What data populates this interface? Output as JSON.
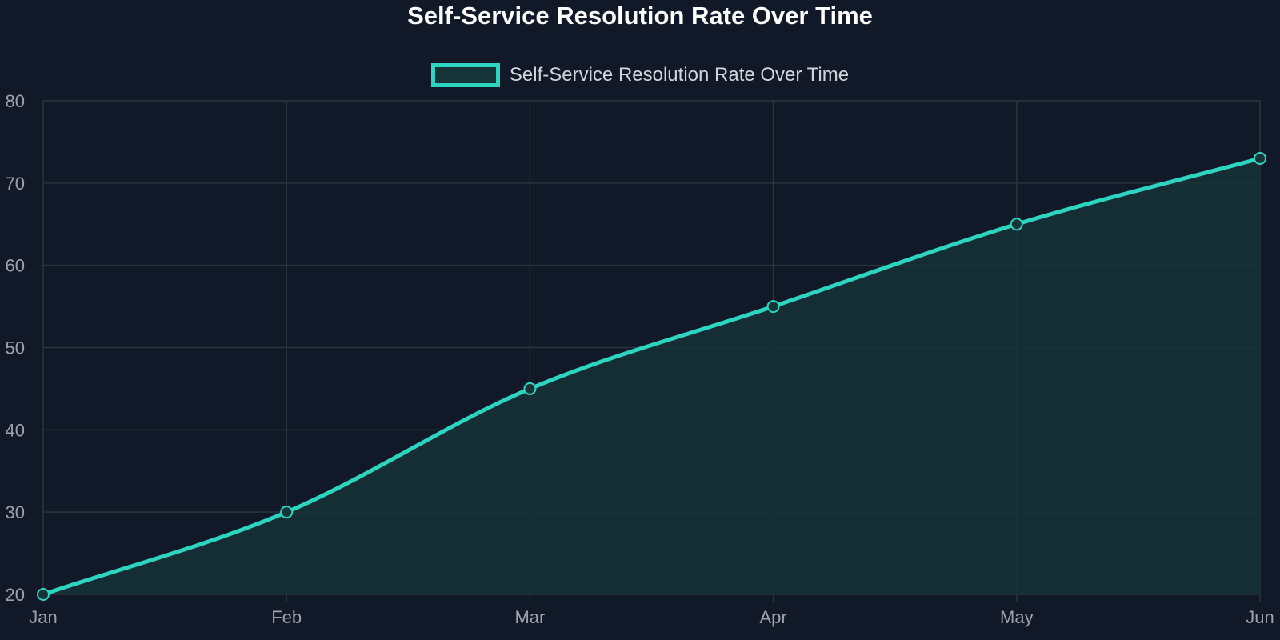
{
  "chart_data": {
    "type": "area",
    "title": "Self-Service Resolution Rate Over Time",
    "categories": [
      "Jan",
      "Feb",
      "Mar",
      "Apr",
      "May",
      "Jun"
    ],
    "series": [
      {
        "name": "Self-Service Resolution Rate Over Time",
        "values": [
          20,
          30,
          45,
          55,
          65,
          73
        ]
      }
    ],
    "xlabel": "",
    "ylabel": "",
    "ylim": [
      20,
      80
    ],
    "yticks": [
      "20",
      "30",
      "40",
      "50",
      "60",
      "70",
      "80"
    ],
    "grid": true,
    "legend": "top-center",
    "colors": {
      "background": "#111827",
      "line": "#2dd4bf",
      "fill": "#163338",
      "grid": "#2a3340",
      "title": "#ffffff",
      "ticks": "#9ca3af",
      "legend_text": "#d1d5db"
    }
  }
}
